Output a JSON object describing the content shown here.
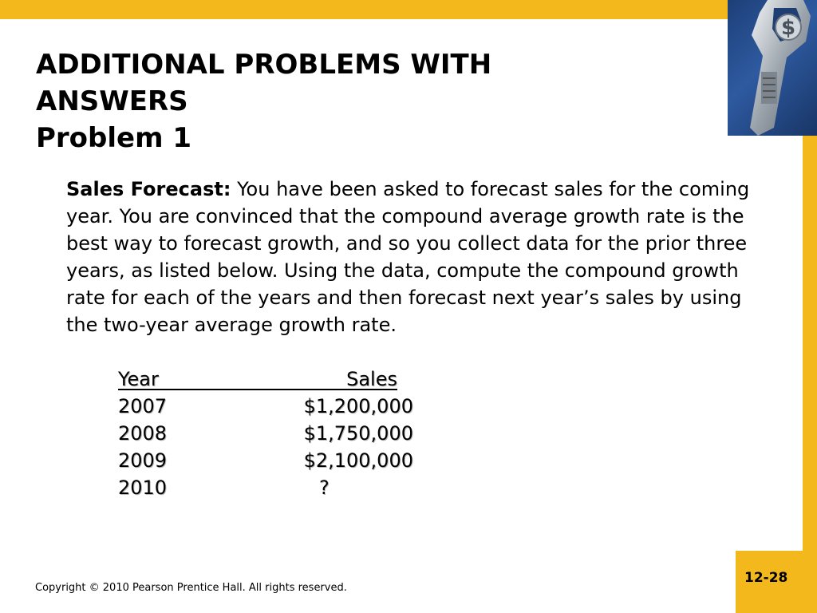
{
  "slide": {
    "title_line1": "ADDITIONAL PROBLEMS WITH",
    "title_line2": "ANSWERS",
    "title_line3": "Problem 1",
    "body_lead": "Sales Forecast:",
    "body_text": " You have been asked to forecast sales for the coming year.  You are convinced that the compound average growth rate is the best way to forecast growth, and so you collect data for the prior three years, as listed below. Using the data, compute the compound growth rate for each of the years and then forecast next year’s sales by using the two-year average growth rate.",
    "table": {
      "headers": [
        "Year",
        "Sales"
      ],
      "rows": [
        {
          "year": "2007",
          "sales": "$1,200,000"
        },
        {
          "year": "2008",
          "sales": "$1,750,000"
        },
        {
          "year": "2009",
          "sales": "$2,100,000"
        },
        {
          "year": "2010",
          "sales": "?"
        }
      ]
    },
    "copyright": "Copyright © 2010 Pearson Prentice Hall. All rights reserved.",
    "page_number": "12-28",
    "logo_icon": "wrench-dollar-icon",
    "accent_color": "#f2b81c"
  }
}
